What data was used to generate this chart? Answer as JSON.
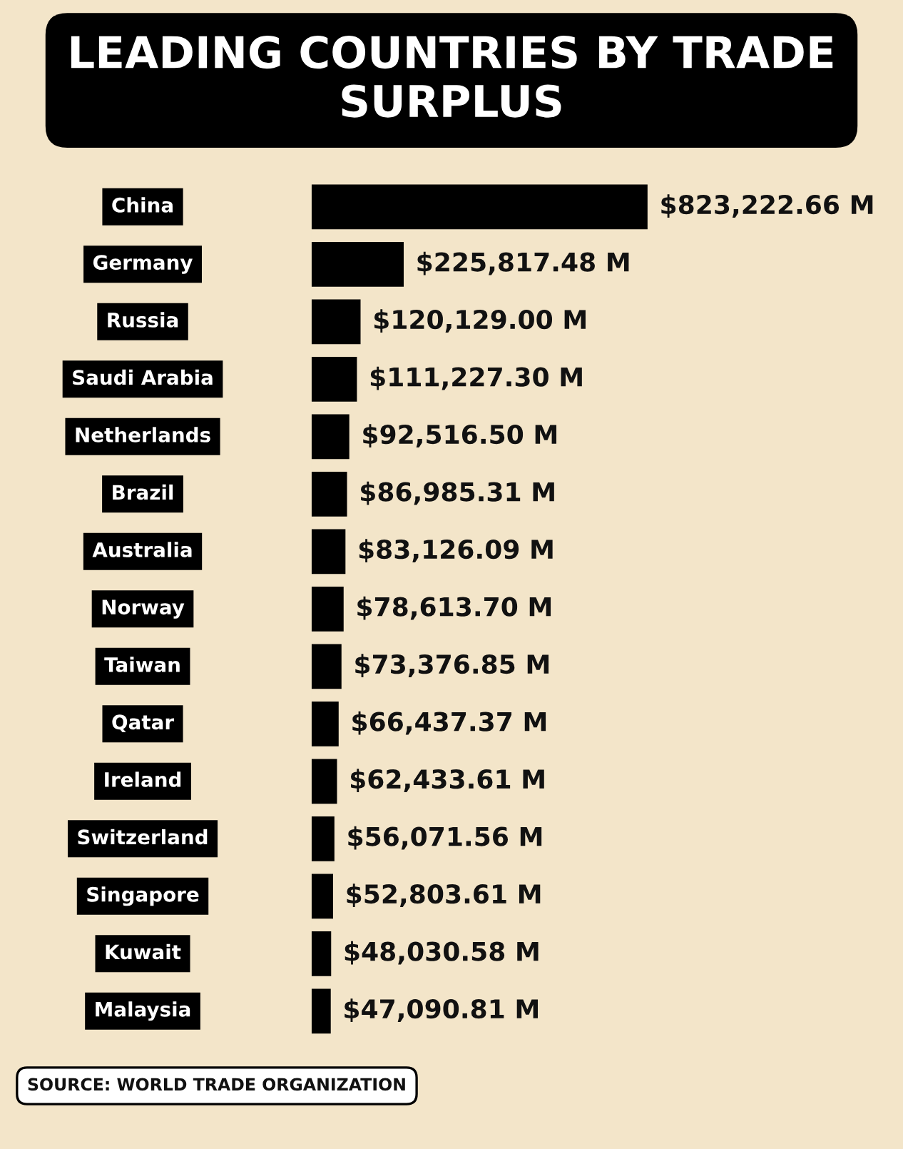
{
  "chart_data": {
    "type": "bar",
    "orientation": "horizontal",
    "title": "LEADING COUNTRIES BY TRADE SURPLUS",
    "categories": [
      "China",
      "Germany",
      "Russia",
      "Saudi Arabia",
      "Netherlands",
      "Brazil",
      "Australia",
      "Norway",
      "Taiwan",
      "Qatar",
      "Ireland",
      "Switzerland",
      "Singapore",
      "Kuwait",
      "Malaysia"
    ],
    "values": [
      823222.66,
      225817.48,
      120129.0,
      111227.3,
      92516.5,
      86985.31,
      83126.09,
      78613.7,
      73376.85,
      66437.37,
      62433.61,
      56071.56,
      52803.61,
      48030.58,
      47090.81
    ],
    "value_labels": [
      "$823,222.66 M",
      "$225,817.48 M",
      "$120,129.00 M",
      "$111,227.30 M",
      "$92,516.50 M",
      "$86,985.31 M",
      "$83,126.09 M",
      "$78,613.70 M",
      "$73,376.85 M",
      "$66,437.37 M",
      "$62,433.61 M",
      "$56,071.56 M",
      "$52,803.61 M",
      "$48,030.58 M",
      "$47,090.81 M"
    ],
    "color": "#000000",
    "annotations": [
      "SOURCE: WORLD TRADE ORGANIZATION"
    ]
  }
}
